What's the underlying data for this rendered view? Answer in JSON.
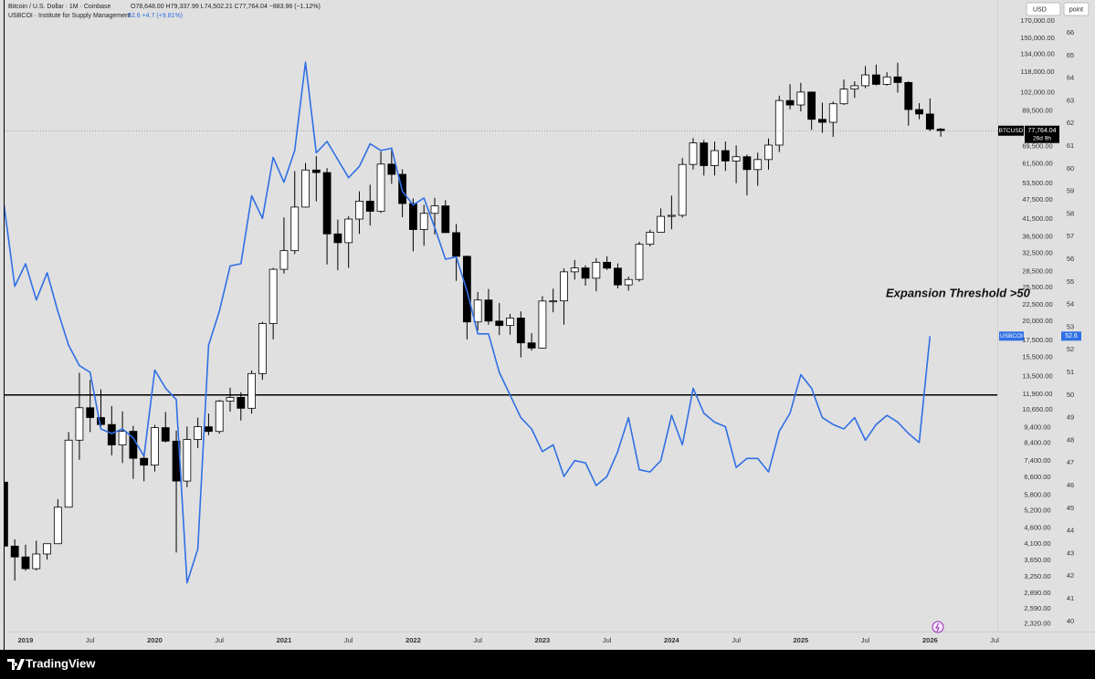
{
  "header": {
    "main": "Bitcoin / U.S. Dollar · 1M · Coinbase",
    "main_values": "O78,648.00 H79,337.99 L74,502.21 C77,764.04 −883.96 (−1.12%)",
    "study": "USBCOI · Institute for Supply Management",
    "study_values": "52.6 +4.7 (+9.81%)",
    "currency": "USD",
    "scale_mode": "point",
    "brand": "TradingView"
  },
  "chart_data": {
    "type": "candlestick",
    "log_scale": true,
    "grid": false,
    "annotation": "Expansion Threshold >50",
    "threshold": 50,
    "categories": [
      null,
      null,
      "2019",
      null,
      null,
      null,
      null,
      null,
      "Jul",
      null,
      null,
      null,
      null,
      null,
      "2020",
      null,
      null,
      null,
      null,
      null,
      "Jul",
      null,
      null,
      null,
      null,
      null,
      "2021",
      null,
      null,
      null,
      null,
      null,
      "Jul",
      null,
      null,
      null,
      null,
      null,
      "2022",
      null,
      null,
      null,
      null,
      null,
      "Jul",
      null,
      null,
      null,
      null,
      null,
      "2023",
      null,
      null,
      null,
      null,
      null,
      "Jul",
      null,
      null,
      null,
      null,
      null,
      "2024",
      null,
      null,
      null,
      null,
      null,
      "Jul",
      null,
      null,
      null,
      null,
      null,
      "2025",
      null,
      null,
      null,
      null,
      null,
      "Jul",
      null,
      null,
      null,
      null,
      null,
      "2026",
      null,
      null,
      null,
      null,
      null,
      "Jul"
    ],
    "series": [
      {
        "name": "BTCUSD",
        "type": "candlestick",
        "up_color": "#ffffff",
        "down_color": "#000000",
        "open": [
          6370,
          4040,
          3740,
          3440,
          3820,
          4110,
          5330,
          8590,
          10820,
          10090,
          9600,
          8300,
          9150,
          7550,
          7190,
          9390,
          8530,
          6420,
          8630,
          9450,
          9140,
          11340,
          11650,
          10780,
          13800,
          19700,
          28990,
          33110,
          45150,
          58790,
          57720,
          37300,
          35040,
          41460,
          47100,
          43820,
          61320,
          57000,
          46300,
          38480,
          43180,
          45540,
          37640,
          31800,
          19930,
          23300,
          20050,
          19430,
          20490,
          17170,
          16550,
          23130,
          23150,
          28470,
          29270,
          27210,
          30480,
          29230,
          25940,
          26970,
          34650,
          37720,
          42260,
          42580,
          61160,
          71290,
          60640,
          67490,
          62680,
          64620,
          58970,
          63330,
          70200,
          96400,
          93400,
          102400,
          84350,
          82550,
          94200,
          104600,
          107100,
          115700,
          108200,
          114050,
          109600,
          90400,
          87600,
          78648,
          null,
          null,
          null,
          null,
          null
        ],
        "high": [
          6570,
          4240,
          4080,
          4200,
          4100,
          5640,
          9100,
          13880,
          13200,
          12330,
          10950,
          10540,
          9510,
          7760,
          9580,
          10500,
          9190,
          9470,
          10080,
          10380,
          11440,
          12480,
          12080,
          14100,
          19950,
          29300,
          41950,
          58350,
          61790,
          64900,
          59590,
          41300,
          42300,
          50500,
          52950,
          67000,
          69000,
          59050,
          47990,
          45850,
          48240,
          47450,
          40040,
          31990,
          24670,
          25200,
          22800,
          21100,
          21480,
          18400,
          23960,
          25250,
          29190,
          31000,
          29820,
          31390,
          31800,
          30230,
          27490,
          35280,
          38420,
          44700,
          48970,
          64000,
          73800,
          72800,
          71980,
          71990,
          70000,
          65600,
          66500,
          73600,
          99800,
          108300,
          109350,
          102800,
          95000,
          95750,
          111900,
          110500,
          123200,
          124500,
          117900,
          126200,
          110600,
          94600,
          97900,
          79337.99,
          null,
          null,
          null,
          null,
          null
        ],
        "low": [
          3520,
          3160,
          3390,
          3400,
          3670,
          4100,
          5330,
          7470,
          9100,
          9330,
          7710,
          7300,
          6520,
          6410,
          6870,
          8450,
          3860,
          6150,
          8120,
          8900,
          8990,
          10530,
          9880,
          10370,
          13200,
          17600,
          28130,
          32300,
          44960,
          47040,
          30000,
          28800,
          29300,
          37330,
          39600,
          43290,
          53250,
          42000,
          32950,
          34300,
          37150,
          37580,
          26700,
          17600,
          18780,
          19540,
          18150,
          18200,
          15480,
          16250,
          16500,
          21350,
          19550,
          26950,
          25810,
          24800,
          28860,
          25300,
          24900,
          26560,
          34100,
          37620,
          38550,
          41880,
          59000,
          56500,
          56550,
          58400,
          53500,
          49050,
          52550,
          58900,
          66800,
          90500,
          89200,
          78200,
          76600,
          74400,
          93400,
          98200,
          105300,
          107300,
          107250,
          102000,
          80600,
          84400,
          77500,
          74502.21,
          null,
          null,
          null,
          null,
          null
        ],
        "close": [
          4040,
          3740,
          3440,
          3820,
          4110,
          5330,
          8590,
          10820,
          10090,
          9600,
          8300,
          9150,
          7550,
          7190,
          9390,
          8530,
          6420,
          8630,
          9450,
          9140,
          11340,
          11650,
          10780,
          13800,
          19700,
          28990,
          33110,
          45150,
          58790,
          57720,
          37300,
          35040,
          41460,
          47100,
          43820,
          61320,
          57000,
          46300,
          38480,
          43180,
          45540,
          37640,
          31800,
          19930,
          23300,
          20050,
          19430,
          20490,
          17170,
          16550,
          23130,
          23150,
          28470,
          29270,
          27210,
          30480,
          29230,
          25940,
          26970,
          34650,
          37720,
          42260,
          42580,
          61160,
          71290,
          60640,
          67490,
          62680,
          64620,
          58970,
          63330,
          70200,
          96400,
          93400,
          102400,
          84350,
          82550,
          94200,
          104600,
          107100,
          115700,
          108200,
          114050,
          109600,
          90400,
          87600,
          78648,
          77764.04,
          null,
          null,
          null,
          null,
          null
        ],
        "last_label": "77,764.04",
        "countdown": "26d 9h"
      },
      {
        "name": "USBCOI",
        "type": "line",
        "color": "#2f6fe4",
        "axis": "y2",
        "values": [
          58.4,
          54.8,
          55.8,
          54.2,
          55.4,
          53.7,
          52.2,
          51.3,
          51.0,
          48.5,
          48.3,
          48.5,
          48.1,
          47.3,
          51.1,
          50.3,
          49.8,
          41.7,
          43.2,
          52.2,
          53.7,
          55.7,
          55.8,
          58.8,
          57.8,
          60.5,
          59.4,
          60.8,
          64.7,
          60.7,
          61.2,
          60.4,
          59.6,
          60.1,
          61.1,
          60.8,
          60.9,
          59.0,
          58.4,
          58.7,
          57.4,
          56.0,
          56.1,
          54.6,
          52.7,
          52.7,
          51.0,
          50.0,
          49.0,
          48.5,
          47.5,
          47.8,
          46.4,
          47.1,
          47.0,
          46.0,
          46.4,
          47.5,
          49.0,
          46.7,
          46.6,
          47.1,
          49.1,
          47.8,
          50.3,
          49.2,
          48.8,
          48.6,
          46.8,
          47.2,
          47.2,
          46.6,
          48.4,
          49.2,
          50.9,
          50.3,
          49.0,
          48.7,
          48.5,
          49.0,
          48.0,
          48.7,
          49.1,
          48.8,
          48.3,
          47.9,
          52.6,
          null,
          null,
          null,
          null,
          null,
          null
        ],
        "last_label": "52.6"
      }
    ],
    "ylim": [
      2199,
      197210
    ],
    "yticks": [
      {
        "value": 170000,
        "label": "170,000.00"
      },
      {
        "value": 150000,
        "label": "150,000.00"
      },
      {
        "value": 134000,
        "label": "134,000.00"
      },
      {
        "value": 118000,
        "label": "118,000.00"
      },
      {
        "value": 102000,
        "label": "102,000.00"
      },
      {
        "value": 89500,
        "label": "89,500.00"
      },
      {
        "value": 69500,
        "label": "69,500.00"
      },
      {
        "value": 61500,
        "label": "61,500.00"
      },
      {
        "value": 53500,
        "label": "53,500.00"
      },
      {
        "value": 47500,
        "label": "47,500.00"
      },
      {
        "value": 41500,
        "label": "41,500.00"
      },
      {
        "value": 36500,
        "label": "36,500.00"
      },
      {
        "value": 32500,
        "label": "32,500.00"
      },
      {
        "value": 28500,
        "label": "28,500.00"
      },
      {
        "value": 25500,
        "label": "25,500.00"
      },
      {
        "value": 22500,
        "label": "22,500.00"
      },
      {
        "value": 20000,
        "label": "20,000.00"
      },
      {
        "value": 17500,
        "label": "17,500.00"
      },
      {
        "value": 15500,
        "label": "15,500.00"
      },
      {
        "value": 13500,
        "label": "13,500.00"
      },
      {
        "value": 11900,
        "label": "11,900.00"
      },
      {
        "value": 10650,
        "label": "10,650.00"
      },
      {
        "value": 9400,
        "label": "9,400.00"
      },
      {
        "value": 8400,
        "label": "8,400.00"
      },
      {
        "value": 7400,
        "label": "7,400.00"
      },
      {
        "value": 6600,
        "label": "6,600.00"
      },
      {
        "value": 5800,
        "label": "5,800.00"
      },
      {
        "value": 5200,
        "label": "5,200.00"
      },
      {
        "value": 4600,
        "label": "4,600.00"
      },
      {
        "value": 4100,
        "label": "4,100.00"
      },
      {
        "value": 3650,
        "label": "3,650.00"
      },
      {
        "value": 3250,
        "label": "3,250.00"
      },
      {
        "value": 2890,
        "label": "2,890.00"
      },
      {
        "value": 2590,
        "label": "2,590.00"
      },
      {
        "value": 2320,
        "label": "2,320.00"
      }
    ],
    "y2lim": [
      39.55,
      67.45
    ],
    "y2ticks": [
      40,
      41,
      42,
      43,
      44,
      45,
      46,
      47,
      48,
      49,
      50,
      51,
      52,
      53,
      54,
      55,
      56,
      57,
      58,
      59,
      60,
      61,
      62,
      63,
      64,
      65,
      66
    ]
  }
}
